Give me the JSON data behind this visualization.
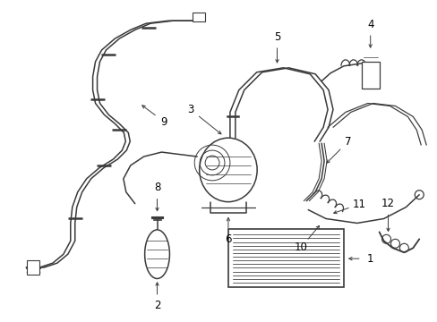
{
  "background_color": "#ffffff",
  "line_color": "#3a3a3a",
  "text_color": "#000000",
  "figsize": [
    4.89,
    3.6
  ],
  "dpi": 100,
  "lw": 1.1,
  "parts": {
    "label_fontsize": 8.5,
    "arrow_lw": 0.7
  }
}
